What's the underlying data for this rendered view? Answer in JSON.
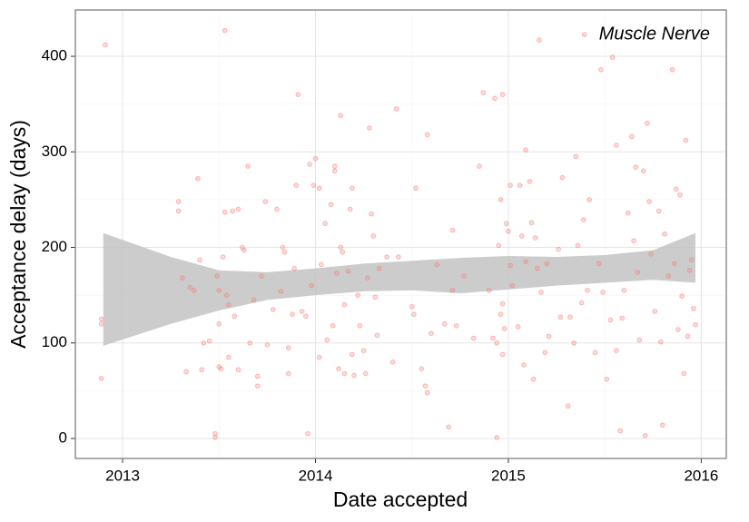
{
  "chart_data": {
    "type": "scatter",
    "x_label": "Date accepted",
    "y_label": "Acceptance delay (days)",
    "xlim": [
      2012.755,
      2016.13
    ],
    "ylim": [
      -20.9,
      448.5
    ],
    "xticks": [
      2013,
      2014,
      2015,
      2016
    ],
    "yticks": [
      0,
      100,
      200,
      300,
      400
    ],
    "grid": true,
    "legend_position": "top-right",
    "series": [
      {
        "name": "Muscle Nerve",
        "color": "#f8766d",
        "x": [
          2012.89,
          2012.89,
          2012.89,
          2012.91,
          2013.29,
          2013.29,
          2013.31,
          2013.33,
          2013.35,
          2013.37,
          2013.39,
          2013.4,
          2013.41,
          2013.42,
          2013.45,
          2013.48,
          2013.48,
          2013.49,
          2013.5,
          2013.5,
          2013.5,
          2013.51,
          2013.52,
          2013.53,
          2013.53,
          2013.54,
          2013.55,
          2013.55,
          2013.57,
          2013.58,
          2013.6,
          2013.6,
          2013.62,
          2013.63,
          2013.65,
          2013.66,
          2013.68,
          2013.7,
          2013.7,
          2013.72,
          2013.74,
          2013.75,
          2013.78,
          2013.8,
          2013.82,
          2013.83,
          2013.84,
          2013.86,
          2013.86,
          2013.88,
          2013.89,
          2013.9,
          2013.91,
          2013.93,
          2013.95,
          2013.96,
          2013.97,
          2013.98,
          2013.99,
          2014.0,
          2014.02,
          2014.02,
          2014.03,
          2014.05,
          2014.06,
          2014.08,
          2014.09,
          2014.1,
          2014.1,
          2014.11,
          2014.12,
          2014.13,
          2014.13,
          2014.14,
          2014.15,
          2014.15,
          2014.17,
          2014.18,
          2014.19,
          2014.19,
          2014.2,
          2014.22,
          2014.23,
          2014.25,
          2014.26,
          2014.27,
          2014.28,
          2014.29,
          2014.3,
          2014.31,
          2014.32,
          2014.33,
          2014.37,
          2014.4,
          2014.42,
          2014.43,
          2014.5,
          2014.51,
          2014.52,
          2014.55,
          2014.57,
          2014.58,
          2014.58,
          2014.6,
          2014.63,
          2014.67,
          2014.69,
          2014.71,
          2014.71,
          2014.73,
          2014.77,
          2014.82,
          2014.85,
          2014.87,
          2014.9,
          2014.92,
          2014.94,
          2014.96,
          2014.96,
          2014.97,
          2014.99,
          2014.93,
          2014.94,
          2014.95,
          2014.97,
          2014.97,
          2014.98,
          2015.0,
          2015.01,
          2015.01,
          2015.02,
          2015.05,
          2015.06,
          2015.07,
          2015.08,
          2015.09,
          2015.09,
          2015.11,
          2015.12,
          2015.13,
          2015.14,
          2015.15,
          2015.16,
          2015.17,
          2015.19,
          2015.2,
          2015.21,
          2015.26,
          2015.27,
          2015.28,
          2015.31,
          2015.32,
          2015.34,
          2015.35,
          2015.36,
          2015.38,
          2015.39,
          2015.41,
          2015.42,
          2015.45,
          2015.47,
          2015.48,
          2015.49,
          2015.51,
          2015.53,
          2015.54,
          2015.56,
          2015.56,
          2015.58,
          2015.59,
          2015.6,
          2015.62,
          2015.64,
          2015.65,
          2015.66,
          2015.67,
          2015.68,
          2015.7,
          2015.71,
          2015.72,
          2015.73,
          2015.74,
          2015.76,
          2015.78,
          2015.79,
          2015.8,
          2015.81,
          2015.83,
          2015.85,
          2015.86,
          2015.87,
          2015.88,
          2015.89,
          2015.9,
          2015.91,
          2015.92,
          2015.93,
          2015.94,
          2015.95,
          2015.96,
          2015.97
        ],
        "values": [
          120,
          125,
          63,
          412,
          248,
          238,
          168,
          70,
          158,
          155,
          272,
          187,
          72,
          100,
          102,
          5,
          1,
          170,
          155,
          120,
          75,
          73,
          190,
          427,
          237,
          150,
          140,
          85,
          238,
          128,
          240,
          72,
          200,
          197,
          285,
          100,
          145,
          55,
          65,
          170,
          248,
          98,
          135,
          240,
          154,
          200,
          195,
          95,
          68,
          130,
          178,
          265,
          360,
          133,
          128,
          5,
          287,
          160,
          265,
          293,
          262,
          85,
          182,
          225,
          103,
          245,
          118,
          285,
          280,
          173,
          73,
          338,
          200,
          195,
          140,
          68,
          175,
          240,
          262,
          88,
          66,
          150,
          118,
          92,
          68,
          168,
          325,
          235,
          212,
          148,
          108,
          178,
          190,
          80,
          345,
          190,
          138,
          130,
          262,
          73,
          55,
          48,
          318,
          110,
          182,
          120,
          12,
          218,
          155,
          118,
          170,
          105,
          285,
          362,
          155,
          105,
          100,
          130,
          250,
          360,
          225,
          356,
          1,
          202,
          141,
          88,
          115,
          217,
          181,
          265,
          160,
          117,
          265,
          212,
          77,
          302,
          185,
          269,
          226,
          62,
          210,
          178,
          417,
          153,
          90,
          183,
          107,
          198,
          127,
          273,
          34,
          127,
          100,
          295,
          202,
          142,
          229,
          155,
          250,
          90,
          183,
          386,
          153,
          62,
          124,
          399,
          92,
          307,
          8,
          126,
          155,
          236,
          316,
          207,
          284,
          174,
          103,
          280,
          3,
          330,
          248,
          193,
          133,
          238,
          101,
          14,
          214,
          170,
          386,
          183,
          261,
          114,
          255,
          149,
          68,
          312,
          107,
          176,
          187,
          136,
          119
        ]
      }
    ],
    "ribbon": {
      "color": "#bfbfbf",
      "x": [
        2012.9,
        2013.25,
        2013.5,
        2013.75,
        2014,
        2014.25,
        2014.5,
        2014.75,
        2015,
        2015.25,
        2015.5,
        2015.75,
        2015.97
      ],
      "upper": [
        215,
        190,
        176,
        174,
        178,
        183,
        186,
        189,
        191,
        190,
        192,
        197,
        215
      ],
      "lower": [
        97,
        120,
        134,
        145,
        150,
        154,
        155,
        152,
        156,
        160,
        163,
        166,
        163
      ]
    }
  }
}
